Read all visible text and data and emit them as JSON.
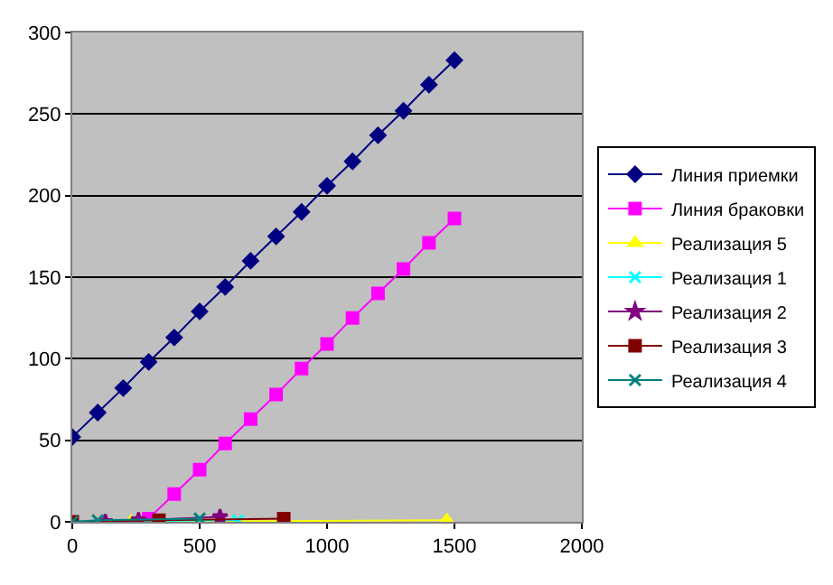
{
  "chart_data": {
    "type": "line",
    "xlim": [
      0,
      2000
    ],
    "xticks": [
      0,
      500,
      1000,
      1500,
      2000
    ],
    "ylim": [
      0,
      300
    ],
    "yticks": [
      0,
      50,
      100,
      150,
      200,
      250,
      300
    ],
    "grid": "y",
    "legend": "right",
    "series": [
      {
        "name": "Линия приемки",
        "color": "#000080",
        "marker": "diamond",
        "x": [
          0,
          100,
          200,
          300,
          400,
          500,
          600,
          700,
          800,
          900,
          1000,
          1100,
          1200,
          1300,
          1400,
          1500
        ],
        "values": [
          52,
          67,
          82,
          98,
          113,
          129,
          144,
          160,
          175,
          190,
          206,
          221,
          237,
          252,
          268,
          283
        ]
      },
      {
        "name": "Линия браковки",
        "color": "#ff00ff",
        "marker": "square",
        "x": [
          300,
          400,
          500,
          600,
          700,
          800,
          900,
          1000,
          1100,
          1200,
          1300,
          1400,
          1500
        ],
        "values": [
          2,
          17,
          32,
          48,
          63,
          78,
          94,
          109,
          125,
          140,
          155,
          171,
          186
        ]
      },
      {
        "name": "Реализация 5",
        "color": "#ffff00",
        "marker": "triangle",
        "x": [
          230,
          1470
        ],
        "values": [
          0,
          1
        ]
      },
      {
        "name": "Реализация 1",
        "color": "#00ffff",
        "marker": "cross",
        "x": [
          0,
          650
        ],
        "values": [
          0,
          1
        ]
      },
      {
        "name": "Реализация 2",
        "color": "#800080",
        "marker": "star",
        "x": [
          130,
          260,
          580
        ],
        "values": [
          0,
          1,
          3
        ]
      },
      {
        "name": "Реализация 3",
        "color": "#800000",
        "marker": "square",
        "x": [
          0,
          340,
          830
        ],
        "values": [
          0,
          1,
          2
        ]
      },
      {
        "name": "Реализация 4",
        "color": "#008080",
        "marker": "cross",
        "x": [
          0,
          100,
          500
        ],
        "values": [
          0,
          1,
          2
        ]
      }
    ]
  }
}
